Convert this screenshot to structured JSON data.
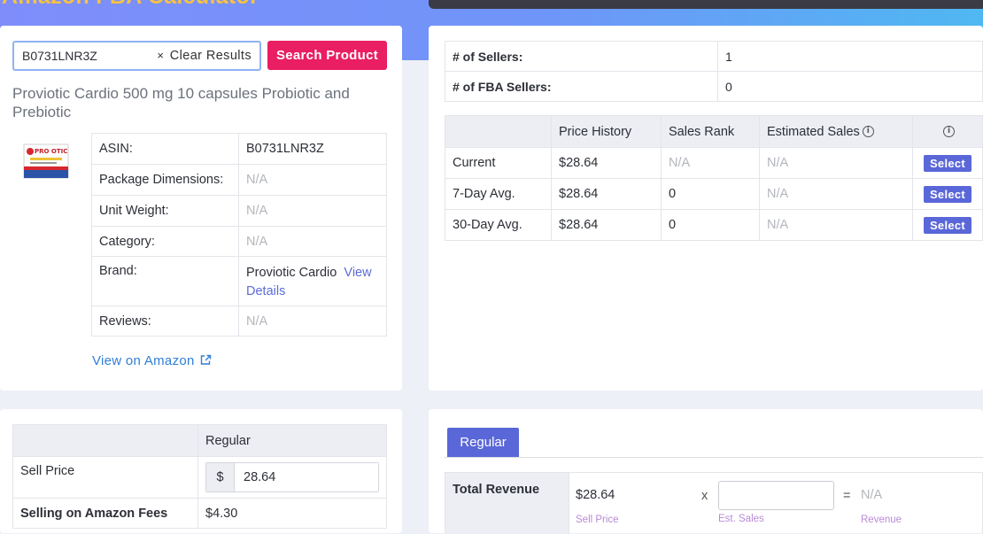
{
  "header": {
    "title": "Amazon FBA Calculator"
  },
  "search": {
    "value": "B0731LNR3Z",
    "clear_icon": "×",
    "clear_label": "Clear Results",
    "submit_label": "Search Product"
  },
  "product": {
    "title": "Proviotic Cardio 500 mg 10 capsules Probiotic and Prebiotic",
    "rows": [
      {
        "label": "ASIN:",
        "value": "B0731LNR3Z"
      },
      {
        "label": "Package Dimensions:",
        "value": "N/A"
      },
      {
        "label": "Unit Weight:",
        "value": "N/A"
      },
      {
        "label": "Category:",
        "value": "N/A"
      },
      {
        "label": "Brand:",
        "value": "Proviotic Cardio",
        "link": "View Details"
      },
      {
        "label": "Reviews:",
        "value": "N/A"
      }
    ],
    "amazon_link": "View on Amazon",
    "image_text": "PRO OTIC"
  },
  "sellers": [
    {
      "label": "# of Sellers:",
      "value": "1"
    },
    {
      "label": "# of FBA Sellers:",
      "value": "0"
    }
  ],
  "price_table": {
    "headers": [
      "",
      "Price History",
      "Sales Rank",
      "Estimated Sales"
    ],
    "rows": [
      {
        "label": "Current",
        "price": "$28.64",
        "rank": "N/A",
        "sales": "N/A",
        "action": "Select"
      },
      {
        "label": "7-Day Avg.",
        "price": "$28.64",
        "rank": "0",
        "sales": "N/A",
        "action": "Select"
      },
      {
        "label": "30-Day Avg.",
        "price": "$28.64",
        "rank": "0",
        "sales": "N/A",
        "action": "Select"
      }
    ]
  },
  "fees": {
    "header": "Regular",
    "sell_price_label": "Sell Price",
    "currency": "$",
    "sell_price_value": "28.64",
    "amazon_fees_label": "Selling on Amazon Fees",
    "amazon_fees_value": "$4.30"
  },
  "revenue": {
    "tab": "Regular",
    "label": "Total Revenue",
    "sell_price": "$28.64",
    "sell_price_caption": "Sell Price",
    "times": "x",
    "est_sales_caption": "Est. Sales",
    "equals": "=",
    "result": "N/A",
    "result_caption": "Revenue"
  },
  "icons": {
    "info": "info-circle-icon",
    "external": "external-link-icon"
  }
}
